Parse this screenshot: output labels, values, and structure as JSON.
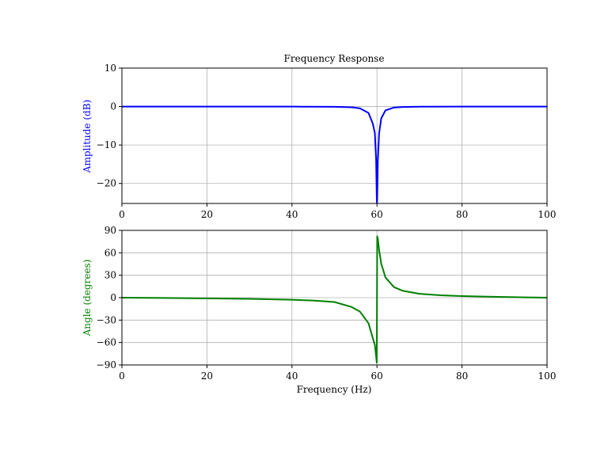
{
  "chart_data": [
    {
      "type": "line",
      "title": "Frequency Response",
      "xlabel": "",
      "ylabel": "Amplitude (dB)",
      "ylabel_color": "#0000ff",
      "xlim": [
        0,
        100
      ],
      "ylim": [
        -25.2,
        10
      ],
      "xticks": [
        0,
        20,
        40,
        60,
        80,
        100
      ],
      "yticks": [
        10,
        0,
        -10,
        -20
      ],
      "grid": true,
      "series": [
        {
          "color": "#0000ff",
          "x": [
            0,
            10,
            20,
            30,
            40,
            50,
            54,
            56,
            58,
            59,
            59.5,
            59.8,
            59.95,
            60,
            60.05,
            60.2,
            60.5,
            61,
            62,
            64,
            66,
            70,
            80,
            90,
            100
          ],
          "y": [
            0,
            0,
            0,
            -0.01,
            -0.02,
            -0.05,
            -0.2,
            -0.47,
            -1.65,
            -4.38,
            -6.9,
            -14.1,
            -24.0,
            -25.2,
            -24.0,
            -14.1,
            -7.0,
            -3.07,
            -0.99,
            -0.26,
            -0.12,
            -0.03,
            -0.01,
            0,
            0
          ]
        }
      ]
    },
    {
      "type": "line",
      "title": "",
      "xlabel": "Frequency (Hz)",
      "ylabel": "Angle (degrees)",
      "ylabel_color": "#008000",
      "xlim": [
        0,
        100
      ],
      "ylim": [
        -90,
        90
      ],
      "xticks": [
        0,
        20,
        40,
        60,
        80,
        100
      ],
      "yticks": [
        90,
        60,
        30,
        0,
        -30,
        -60,
        -90
      ],
      "grid": true,
      "series": [
        {
          "color": "#008000",
          "x": [
            0,
            10,
            20,
            30,
            40,
            45,
            50,
            54,
            56,
            58,
            59,
            59.5,
            59.8,
            59.95,
            60.05,
            60.2,
            60.5,
            61,
            62,
            64,
            66,
            70,
            75,
            80,
            85,
            90,
            95,
            100
          ],
          "y": [
            0,
            -0.44,
            -0.95,
            -1.62,
            -2.77,
            -3.81,
            -5.8,
            -12.4,
            -18.7,
            -34.2,
            -53.8,
            -63.2,
            -78.6,
            -87.1,
            82.0,
            78.7,
            63.7,
            45.4,
            26.9,
            14.1,
            9.3,
            5.2,
            3.2,
            2.1,
            1.4,
            0.87,
            0.41,
            0
          ]
        }
      ]
    }
  ]
}
